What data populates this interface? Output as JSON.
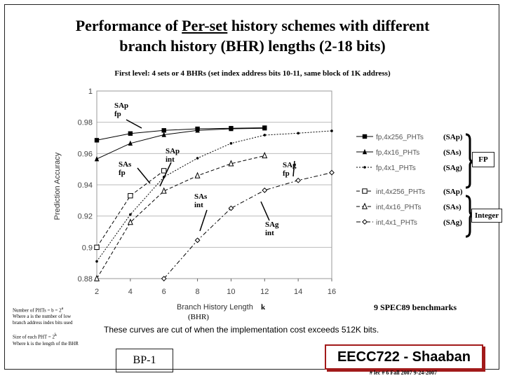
{
  "slide": {
    "title_pre": "Performance of ",
    "title_u": "Per-set",
    "title_post": " history schemes with different",
    "title_line2": "branch history (BHR) lengths (2-18 bits)",
    "subtitle": "First level:  4 sets  or 4 BHRs    (set index address bits 10-11,  same block of 1K address)",
    "footer_note": "These curves are cut of when the implementation cost exceeds 512K bits.",
    "benchmarks": "9 SPEC89 benchmarks",
    "bhr_note": "(BHR)",
    "k_note": "k",
    "phts_note_1": "Number of PHTs = b = 2",
    "phts_note_1_sup": "a",
    "phts_note_2": "Where a is the number of low",
    "phts_note_3": "branch address index bits used",
    "phts_note_4": "Size of each PHT = 2",
    "phts_note_4_sup": "k",
    "phts_note_5": "Where k is the length of the BHR",
    "bp_label": "BP-1",
    "course": "EECC722 - Shaaban",
    "footer": "#  lec # 6   Fall 2007   9-24-2007",
    "fp_group": "FP",
    "int_group": "Integer"
  },
  "annotations": {
    "sap_fp": [
      "SAp",
      "fp"
    ],
    "sas_fp": [
      "SAs",
      "fp"
    ],
    "sap_int": [
      "SAp",
      "int"
    ],
    "sag_fp": [
      "SAg",
      "fp"
    ],
    "sas_int": [
      "SAs",
      "int"
    ],
    "sag_int": [
      "SAg",
      "int"
    ]
  },
  "chart_data": {
    "type": "line",
    "xlabel": "Branch History Length",
    "ylabel": "Prediction Accuracy",
    "xlim": [
      2,
      16
    ],
    "ylim": [
      0.88,
      1
    ],
    "xticks": [
      "2",
      "4",
      "6",
      "8",
      "10",
      "12",
      "14",
      "16"
    ],
    "yticks": [
      "1",
      "0.98",
      "0.96",
      "0.94",
      "0.92",
      "0.9",
      "0.88"
    ],
    "grid": "horizontal",
    "legend_position": "right",
    "series": [
      {
        "name": "fp,4x256_PHTs",
        "tag": "(SAp)",
        "marker": "square-filled",
        "dash": "solid",
        "x": [
          2,
          4,
          6,
          8,
          10,
          12
        ],
        "y": [
          0.9685,
          0.9728,
          0.9748,
          0.9758,
          0.9762,
          0.9765
        ]
      },
      {
        "name": "fp,4x16_PHTs",
        "tag": "(SAs)",
        "marker": "triangle-filled",
        "dash": "solid",
        "x": [
          2,
          4,
          6,
          8,
          10,
          12
        ],
        "y": [
          0.9565,
          0.9665,
          0.972,
          0.9748,
          0.9758,
          0.9762
        ]
      },
      {
        "name": "fp,4x1_PHTs",
        "tag": "(SAg)",
        "marker": "diamond-small",
        "dash": "dotted",
        "x": [
          2,
          4,
          6,
          8,
          10,
          12,
          14,
          16
        ],
        "y": [
          0.891,
          0.921,
          0.945,
          0.957,
          0.9665,
          0.9718,
          0.973,
          0.9745
        ]
      },
      {
        "name": "int,4x256_PHTs",
        "tag": "(SAp)",
        "marker": "square-open",
        "dash": "dashed",
        "x": [
          2,
          4,
          6
        ],
        "y": [
          0.9,
          0.933,
          0.949
        ]
      },
      {
        "name": "int,4x16_PHTs",
        "tag": "(SAs)",
        "marker": "triangle-open",
        "dash": "dashed",
        "x": [
          2,
          4,
          6,
          8,
          10,
          12
        ],
        "y": [
          0.88,
          0.916,
          0.936,
          0.9458,
          0.9535,
          0.9586
        ]
      },
      {
        "name": "int,4x1_PHTs",
        "tag": "(SAg)",
        "marker": "diamond-open",
        "dash": "dashdot",
        "x": [
          6,
          8,
          10,
          12,
          14,
          16
        ],
        "y": [
          0.88,
          0.9045,
          0.925,
          0.9365,
          0.9428,
          0.9478
        ]
      }
    ]
  }
}
